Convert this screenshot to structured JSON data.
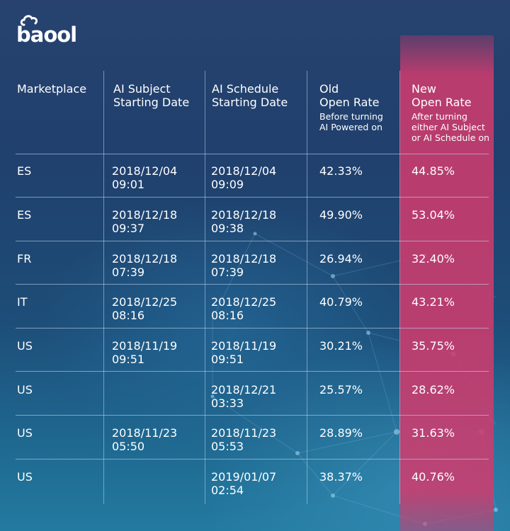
{
  "brand": {
    "logo_text": "baool",
    "logo_icon": "cloud-icon"
  },
  "colors": {
    "highlight": "#cd3c6e",
    "background": "#22446f"
  },
  "table": {
    "headers": [
      {
        "title": "Marketplace",
        "subtitle": ""
      },
      {
        "title": "AI Subject\nStarting Date",
        "subtitle": ""
      },
      {
        "title": "AI Schedule\nStarting Date",
        "subtitle": ""
      },
      {
        "title": "Old\nOpen Rate",
        "subtitle": "Before turning\nAI Powered on"
      },
      {
        "title": "New\nOpen Rate",
        "subtitle": "After turning\neither AI Subject\nor AI Schedule on"
      }
    ],
    "rows": [
      {
        "marketplace": "ES",
        "subject_date": "2018/12/04",
        "subject_time": "09:01",
        "schedule_date": "2018/12/04",
        "schedule_time": "09:09",
        "old_rate": "42.33%",
        "new_rate": "44.85%"
      },
      {
        "marketplace": "ES",
        "subject_date": "2018/12/18",
        "subject_time": "09:37",
        "schedule_date": "2018/12/18",
        "schedule_time": "09:38",
        "old_rate": "49.90%",
        "new_rate": "53.04%"
      },
      {
        "marketplace": "FR",
        "subject_date": "2018/12/18",
        "subject_time": "07:39",
        "schedule_date": "2018/12/18",
        "schedule_time": "07:39",
        "old_rate": "26.94%",
        "new_rate": "32.40%"
      },
      {
        "marketplace": "IT",
        "subject_date": "2018/12/25",
        "subject_time": "08:16",
        "schedule_date": "2018/12/25",
        "schedule_time": "08:16",
        "old_rate": "40.79%",
        "new_rate": "43.21%"
      },
      {
        "marketplace": "US",
        "subject_date": "2018/11/19",
        "subject_time": "09:51",
        "schedule_date": "2018/11/19",
        "schedule_time": "09:51",
        "old_rate": "30.21%",
        "new_rate": "35.75%"
      },
      {
        "marketplace": "US",
        "subject_date": "",
        "subject_time": "",
        "schedule_date": "2018/12/21",
        "schedule_time": "03:33",
        "old_rate": "25.57%",
        "new_rate": "28.62%"
      },
      {
        "marketplace": "US",
        "subject_date": "2018/11/23",
        "subject_time": "05:50",
        "schedule_date": "2018/11/23",
        "schedule_time": "05:53",
        "old_rate": "28.89%",
        "new_rate": "31.63%"
      },
      {
        "marketplace": "US",
        "subject_date": "",
        "subject_time": "",
        "schedule_date": "2019/01/07",
        "schedule_time": "02:54",
        "old_rate": "38.37%",
        "new_rate": "40.76%"
      }
    ]
  }
}
